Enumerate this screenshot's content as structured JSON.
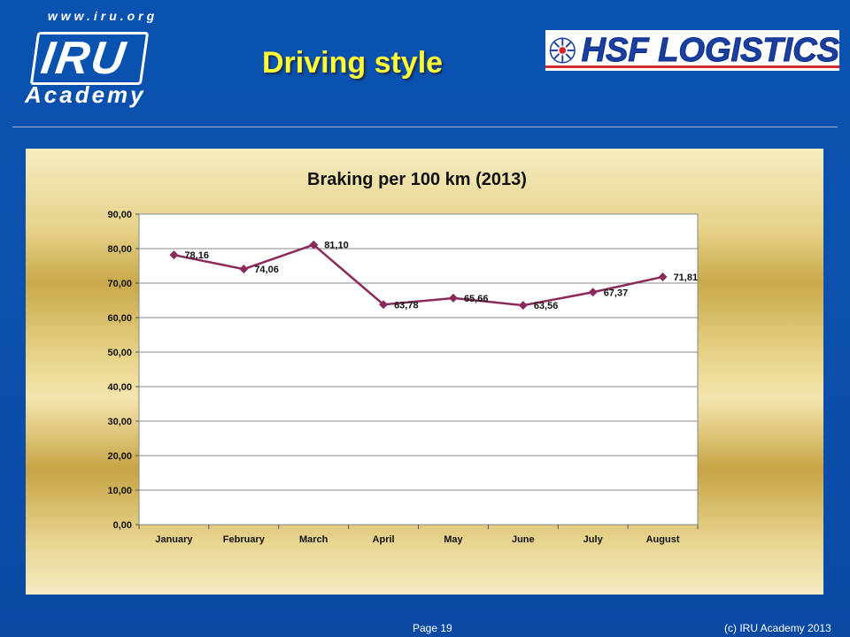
{
  "slide": {
    "title": "Driving style",
    "footer_page": "Page 19",
    "footer_copyright": "(c) IRU Academy 2013"
  },
  "logos": {
    "iru_url": "www.iru.org",
    "iru_name": "IRU",
    "iru_academy": "Academy",
    "hsf_name": "HSF LOGISTICS"
  },
  "colors": {
    "background": "#0b4fab",
    "title": "#ffff33",
    "series": "#8b2a5a",
    "plot_area": "#ffffff"
  },
  "chart_data": {
    "type": "line",
    "title": "Braking per 100 km (2013)",
    "xlabel": "",
    "ylabel": "",
    "categories": [
      "January",
      "February",
      "March",
      "April",
      "May",
      "June",
      "July",
      "August"
    ],
    "series": [
      {
        "values": [
          78.16,
          74.06,
          81.1,
          63.78,
          65.66,
          63.56,
          67.37,
          71.81
        ],
        "labels": [
          "78,16",
          "74,06",
          "81,10",
          "63,78",
          "65,66",
          "63,56",
          "67,37",
          "71,81"
        ],
        "color": "#8b2a5a",
        "marker": "diamond"
      }
    ],
    "ylim": [
      0,
      90
    ],
    "yticks": [
      "0,00",
      "10,00",
      "20,00",
      "30,00",
      "40,00",
      "50,00",
      "60,00",
      "70,00",
      "80,00",
      "90,00"
    ],
    "grid": true,
    "legend": "none"
  }
}
